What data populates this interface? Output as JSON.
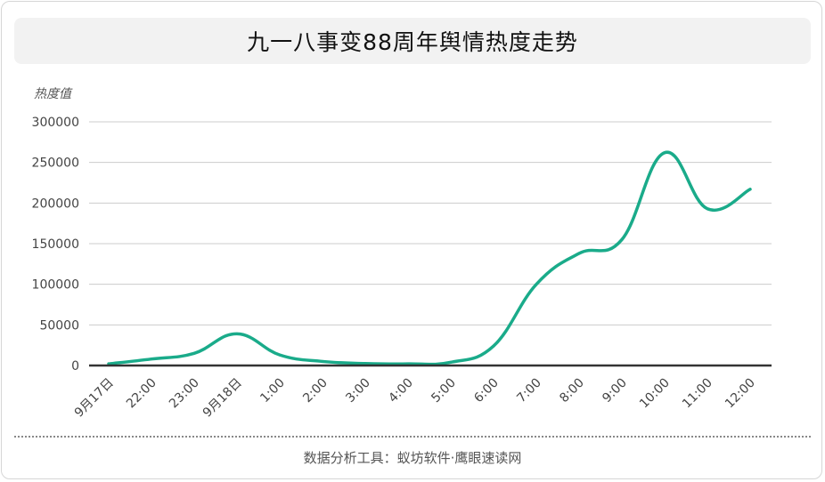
{
  "header": {
    "title": "九一八事变88周年舆情热度走势"
  },
  "footer": {
    "source": "数据分析工具：蚁坊软件·鹰眼速读网"
  },
  "colors": {
    "line": "#1aab8a",
    "grid": "#cccccc",
    "axis": "#333333"
  },
  "chart_data": {
    "type": "line",
    "title": "九一八事变88周年舆情热度走势",
    "ylabel": "热度值",
    "xlabel": "",
    "ylim": [
      0,
      300000
    ],
    "yticks": [
      0,
      50000,
      100000,
      150000,
      200000,
      250000,
      300000
    ],
    "categories": [
      "9月17日",
      "22:00",
      "23:00",
      "9月18日",
      "1:00",
      "2:00",
      "3:00",
      "4:00",
      "5:00",
      "6:00",
      "7:00",
      "8:00",
      "9:00",
      "10:00",
      "11:00",
      "12:00"
    ],
    "series": [
      {
        "values": [
          2000,
          8000,
          15000,
          39000,
          13000,
          5000,
          2500,
          2000,
          4000,
          24000,
          100000,
          138000,
          155000,
          262000,
          193000,
          217000
        ]
      }
    ],
    "grid": true,
    "legend": "none"
  }
}
